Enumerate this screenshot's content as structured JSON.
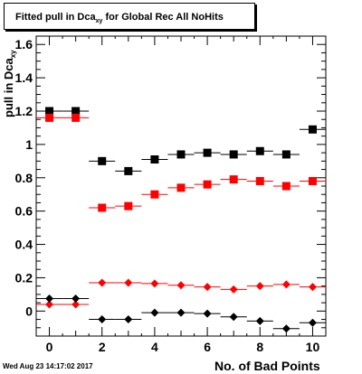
{
  "chart_data": {
    "type": "scatter",
    "title_main": "Fitted pull in Dca",
    "title_sub": "xy",
    "title_rest": " for Global Rec All NoHits",
    "ylabel_main": "pull in Dca",
    "ylabel_sub": "xy",
    "xlabel": "No. of Bad Points",
    "timestamp": "Wed Aug 23 14:17:02 2017",
    "xlim": [
      -0.5,
      10.5
    ],
    "ylim": [
      -0.15,
      1.65
    ],
    "x_ticks": [
      "0",
      "2",
      "4",
      "6",
      "8",
      "10"
    ],
    "y_ticks": [
      "0",
      "0.2",
      "0.4",
      "0.6",
      "0.8",
      "1",
      "1.2",
      "1.4",
      "1.6"
    ],
    "grid": false,
    "series": [
      {
        "marker": "square",
        "color": "#000000",
        "x": [
          0,
          1,
          2,
          3,
          4,
          5,
          6,
          7,
          8,
          9,
          10
        ],
        "y": [
          1.2,
          1.2,
          0.9,
          0.84,
          0.91,
          0.94,
          0.95,
          0.94,
          0.96,
          0.94,
          1.09
        ]
      },
      {
        "marker": "square",
        "color": "#ff0000",
        "x": [
          0,
          1,
          2,
          3,
          4,
          5,
          6,
          7,
          8,
          9,
          10
        ],
        "y": [
          1.16,
          1.16,
          0.62,
          0.63,
          0.7,
          0.74,
          0.76,
          0.79,
          0.78,
          0.75,
          0.78
        ]
      },
      {
        "marker": "diamond",
        "color": "#ff0000",
        "x": [
          0,
          1,
          2,
          3,
          4,
          5,
          6,
          7,
          8,
          9,
          10
        ],
        "y": [
          0.04,
          0.04,
          0.17,
          0.17,
          0.165,
          0.155,
          0.145,
          0.13,
          0.15,
          0.16,
          0.145
        ]
      },
      {
        "marker": "diamond",
        "color": "#000000",
        "x": [
          0,
          1,
          2,
          3,
          4,
          5,
          6,
          7,
          8,
          9,
          10
        ],
        "y": [
          0.075,
          0.075,
          -0.05,
          -0.05,
          -0.01,
          -0.01,
          -0.015,
          -0.035,
          -0.06,
          -0.105,
          -0.07
        ]
      }
    ]
  }
}
